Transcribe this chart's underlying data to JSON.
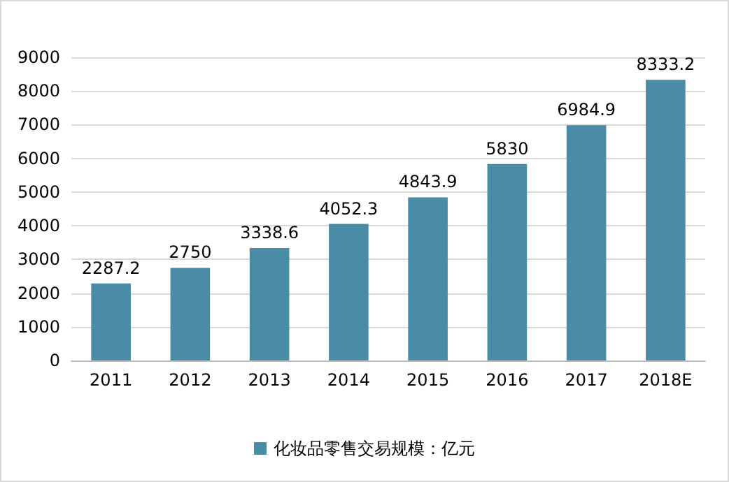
{
  "chart_data": {
    "type": "bar",
    "categories": [
      "2011",
      "2012",
      "2013",
      "2014",
      "2015",
      "2016",
      "2017",
      "2018E"
    ],
    "series": [
      {
        "name": "化妆品零售交易规模：亿元",
        "color": "#4a8ca6",
        "values": [
          2287.2,
          2750,
          3338.6,
          4052.3,
          4843.9,
          5830,
          6984.9,
          8333.2
        ]
      }
    ],
    "ylim": [
      0,
      9000
    ],
    "yticks": [
      0,
      1000,
      2000,
      3000,
      4000,
      5000,
      6000,
      7000,
      8000,
      9000
    ],
    "grid": "y",
    "legend": "bottom",
    "data_labels": true
  }
}
